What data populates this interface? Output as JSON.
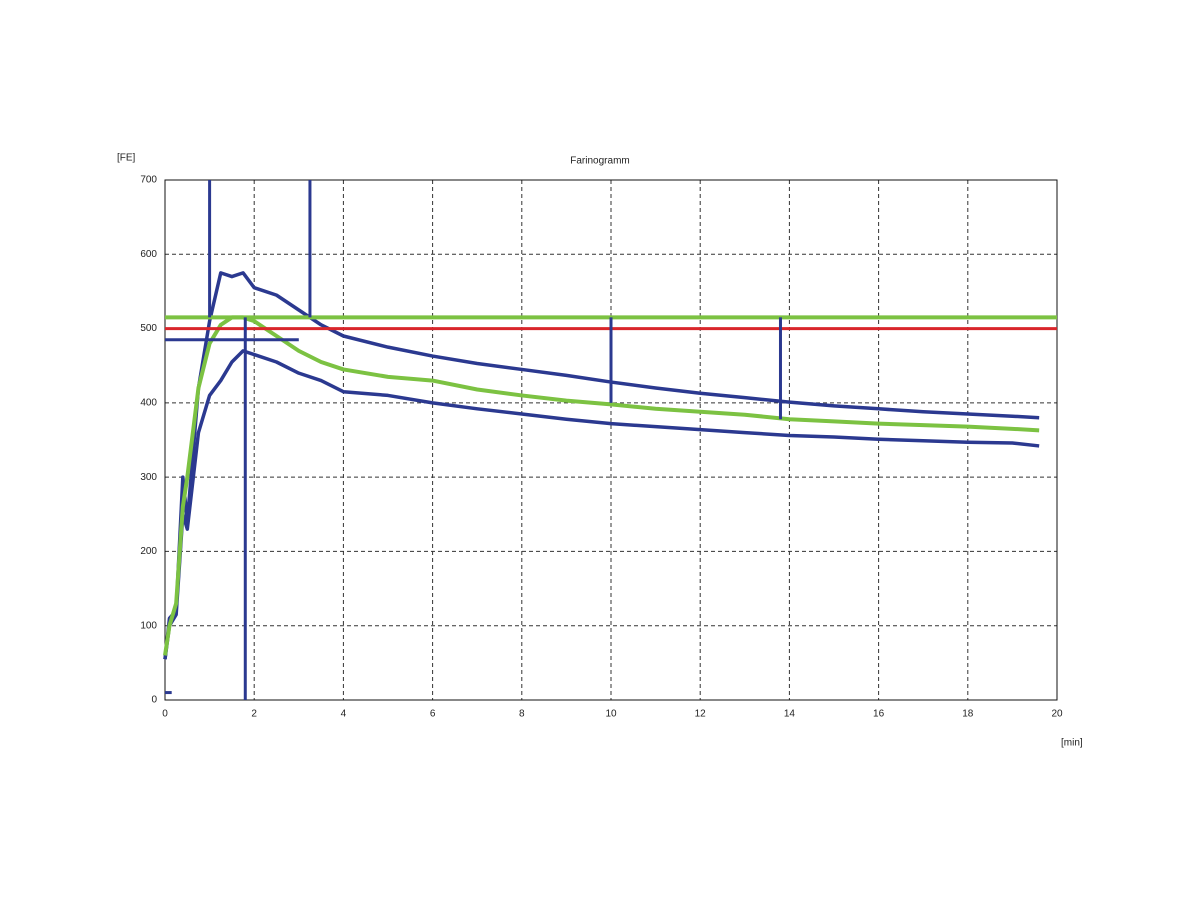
{
  "chart_data": {
    "type": "line",
    "title": "Farinogramm",
    "y_label": "[FE]",
    "x_label": "[min]",
    "xlim": [
      0,
      20
    ],
    "xticks": [
      0,
      2,
      4,
      6,
      8,
      10,
      12,
      14,
      16,
      18,
      20
    ],
    "ylim": [
      0,
      700
    ],
    "yticks": [
      0,
      100,
      200,
      300,
      400,
      500,
      600,
      700
    ],
    "grid": true,
    "series": [
      {
        "color": "#2b3990",
        "width": 3.5,
        "x": [
          0,
          0.1,
          0.25,
          0.4,
          0.5,
          0.75,
          1,
          1.25,
          1.5,
          1.75,
          2,
          2.5,
          3,
          3.5,
          4,
          5,
          6,
          7,
          8,
          9,
          10,
          11,
          12,
          13,
          14,
          15,
          16,
          17,
          18,
          19,
          19.6
        ],
        "values": [
          55,
          110,
          120,
          300,
          240,
          420,
          510,
          575,
          570,
          575,
          555,
          545,
          525,
          505,
          490,
          475,
          463,
          453,
          445,
          437,
          428,
          420,
          413,
          407,
          401,
          396,
          392,
          388,
          385,
          382,
          380
        ]
      },
      {
        "color": "#2b3990",
        "width": 3.5,
        "x": [
          0,
          0.1,
          0.25,
          0.4,
          0.5,
          0.75,
          1,
          1.25,
          1.5,
          1.75,
          2,
          2.5,
          3,
          3.5,
          4,
          5,
          6,
          7,
          8,
          9,
          10,
          11,
          12,
          13,
          14,
          15,
          16,
          17,
          18,
          19,
          19.6
        ],
        "values": [
          55,
          100,
          115,
          250,
          230,
          360,
          410,
          430,
          455,
          470,
          465,
          455,
          440,
          430,
          415,
          410,
          400,
          392,
          385,
          378,
          372,
          368,
          364,
          360,
          356,
          354,
          351,
          349,
          347,
          346,
          342
        ]
      },
      {
        "color": "#7cc242",
        "width": 4,
        "x": [
          0,
          0.1,
          0.25,
          0.4,
          0.5,
          0.75,
          1,
          1.25,
          1.5,
          1.75,
          2,
          2.5,
          3,
          3.5,
          4,
          5,
          6,
          7,
          8,
          9,
          10,
          11,
          12,
          13,
          14,
          15,
          16,
          17,
          18,
          19,
          19.6
        ],
        "values": [
          60,
          100,
          130,
          260,
          300,
          420,
          480,
          505,
          515,
          515,
          510,
          490,
          470,
          455,
          445,
          435,
          430,
          418,
          410,
          403,
          398,
          392,
          388,
          384,
          378,
          375,
          372,
          370,
          368,
          365,
          363
        ]
      },
      {
        "color": "#2b3990",
        "width": 3,
        "x": [
          0,
          0.15
        ],
        "values": [
          10,
          10
        ]
      },
      {
        "color": "#7cc242",
        "width": 4,
        "x": [
          0,
          20
        ],
        "values": [
          515,
          515
        ]
      },
      {
        "color": "#d9262b",
        "width": 3,
        "x": [
          0,
          20
        ],
        "values": [
          500,
          500
        ]
      },
      {
        "color": "#2b3990",
        "width": 3,
        "x": [
          0,
          3
        ],
        "values": [
          485,
          485
        ]
      },
      {
        "color": "#2b3990",
        "width": 3,
        "x": [
          1,
          1
        ],
        "values": [
          700,
          515
        ]
      },
      {
        "color": "#2b3990",
        "width": 3,
        "x": [
          3.25,
          3.25
        ],
        "values": [
          700,
          515
        ]
      },
      {
        "color": "#2b3990",
        "width": 3,
        "x": [
          1.8,
          1.8
        ],
        "values": [
          0,
          515
        ]
      },
      {
        "color": "#2b3990",
        "width": 3,
        "x": [
          10,
          10
        ],
        "values": [
          515,
          400
        ]
      },
      {
        "color": "#2b3990",
        "width": 3,
        "x": [
          13.8,
          13.8
        ],
        "values": [
          515,
          378
        ]
      }
    ]
  }
}
